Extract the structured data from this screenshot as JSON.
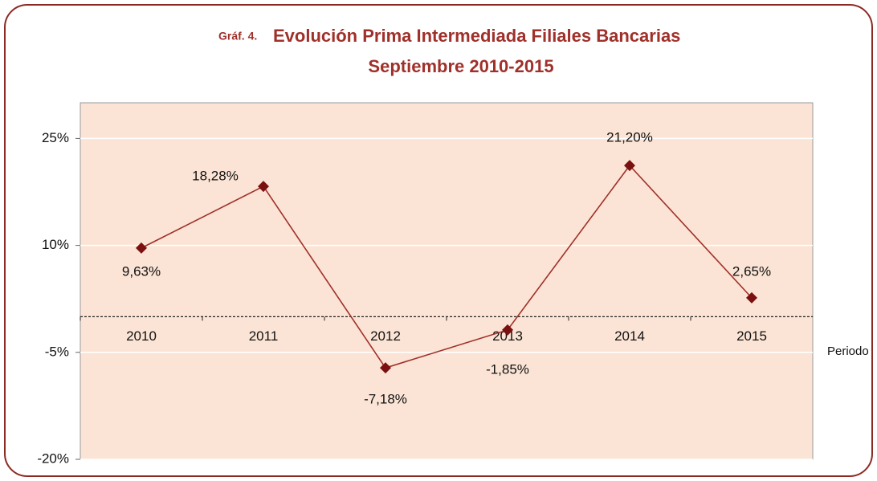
{
  "chart_data": {
    "type": "line",
    "title_prefix": "Gráf. 4.",
    "title": "Evolución Prima Intermediada Filiales Bancarias",
    "subtitle": "Septiembre 2010-2015",
    "x_label": "Periodo",
    "categories": [
      "2010",
      "2011",
      "2012",
      "2013",
      "2014",
      "2015"
    ],
    "series": [
      {
        "color": "#a0302a",
        "values": [
          9.63,
          18.28,
          -7.18,
          -1.85,
          21.2,
          2.65
        ],
        "value_labels": [
          "9,63%",
          "18,28%",
          "-7,18%",
          "-1,85%",
          "21,20%",
          "2,65%"
        ]
      }
    ],
    "ylim": [
      -20,
      30
    ],
    "yticks": [
      {
        "value": -20,
        "label": "-20%"
      },
      {
        "value": -5,
        "label": "-5%"
      },
      {
        "value": 10,
        "label": "10%"
      },
      {
        "value": 25,
        "label": "25%"
      }
    ],
    "grid": true
  }
}
